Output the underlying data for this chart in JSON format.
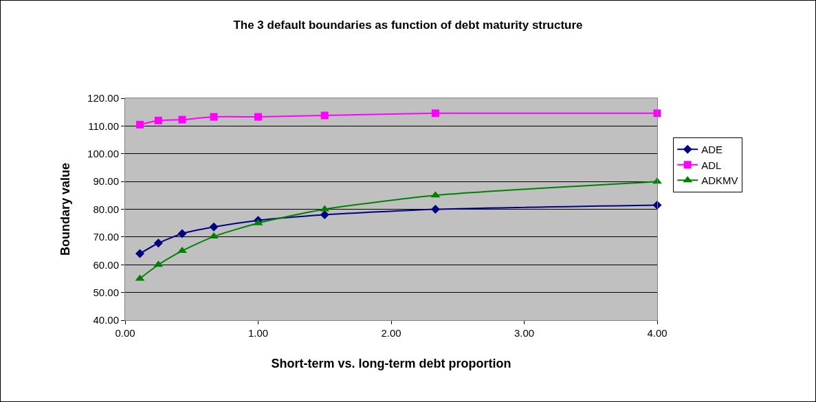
{
  "chart_data": {
    "type": "line",
    "title": "The 3 default boundaries as function of debt maturity structure",
    "xlabel": "Short-term vs. long-term debt proportion",
    "ylabel": "Boundary value",
    "x": [
      0.111,
      0.25,
      0.429,
      0.667,
      1,
      1.5,
      2.333,
      4
    ],
    "series": [
      {
        "name": "ADE",
        "color": "#000080",
        "marker": "diamond",
        "values": [
          64.0,
          67.8,
          71.2,
          73.6,
          76.0,
          78.0,
          80.0,
          81.5
        ]
      },
      {
        "name": "ADL",
        "color": "#ff00ff",
        "marker": "square",
        "values": [
          110.5,
          112.0,
          112.3,
          113.3,
          113.3,
          113.8,
          114.6,
          114.6
        ]
      },
      {
        "name": "ADKMV",
        "color": "#008000",
        "marker": "triangle",
        "values": [
          55.0,
          60.0,
          65.0,
          70.2,
          75.0,
          80.0,
          85.0,
          90.0
        ]
      }
    ],
    "xlim": [
      0,
      4
    ],
    "xticks": [
      {
        "value": 0,
        "label": "0.00"
      },
      {
        "value": 1,
        "label": "1.00"
      },
      {
        "value": 2,
        "label": "2.00"
      },
      {
        "value": 3,
        "label": "3.00"
      },
      {
        "value": 4,
        "label": "4.00"
      }
    ],
    "ylim": [
      40,
      120
    ],
    "yticks": [
      {
        "value": 40,
        "label": "40.00"
      },
      {
        "value": 50,
        "label": "50.00"
      },
      {
        "value": 60,
        "label": "60.00"
      },
      {
        "value": 70,
        "label": "70.00"
      },
      {
        "value": 80,
        "label": "80.00"
      },
      {
        "value": 90,
        "label": "90.00"
      },
      {
        "value": 100,
        "label": "100.00"
      },
      {
        "value": 110,
        "label": "110.00"
      },
      {
        "value": 120,
        "label": "120.00"
      }
    ],
    "grid": "y",
    "legend": "right",
    "line_style": "solid"
  }
}
